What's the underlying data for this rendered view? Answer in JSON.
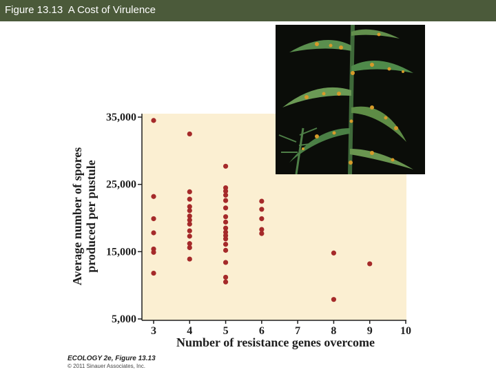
{
  "header": {
    "title": "Figure 13.13  A Cost of Virulence",
    "bar_color": "#4b5a3a"
  },
  "photo": {
    "icon": "leaf-rust-photo"
  },
  "credit": {
    "line1": "ECOLOGY 2e, Figure 13.13",
    "line2": "© 2011 Sinauer Associates, Inc."
  },
  "colors": {
    "plot_bg": "#fbefd2",
    "point": "#a52a2a",
    "axis": "#1e1e1e"
  },
  "chart_data": {
    "type": "scatter",
    "xlabel": "Number of resistance genes overcome",
    "ylabel_lines": [
      "Average number of spores",
      "produced per pustule"
    ],
    "xlim": [
      3,
      10
    ],
    "ylim": [
      5000,
      35000
    ],
    "xticks": [
      "3",
      "4",
      "5",
      "6",
      "7",
      "8",
      "9",
      "10"
    ],
    "yticks": [
      "5,000",
      "15,000",
      "25,000",
      "35,000"
    ],
    "ytick_values": [
      5000,
      15000,
      25000,
      35000
    ],
    "grid": false,
    "points": [
      [
        3,
        34500
      ],
      [
        3,
        23200
      ],
      [
        3,
        19900
      ],
      [
        3,
        17800
      ],
      [
        3,
        15400
      ],
      [
        3,
        14900
      ],
      [
        3,
        11800
      ],
      [
        4,
        32500
      ],
      [
        4,
        23900
      ],
      [
        4,
        22800
      ],
      [
        4,
        21700
      ],
      [
        4,
        21100
      ],
      [
        4,
        20300
      ],
      [
        4,
        19700
      ],
      [
        4,
        19100
      ],
      [
        4,
        18100
      ],
      [
        4,
        17300
      ],
      [
        4,
        16200
      ],
      [
        4,
        15600
      ],
      [
        4,
        13900
      ],
      [
        5,
        27700
      ],
      [
        5,
        24500
      ],
      [
        5,
        24000
      ],
      [
        5,
        23400
      ],
      [
        5,
        22600
      ],
      [
        5,
        21500
      ],
      [
        5,
        20200
      ],
      [
        5,
        19400
      ],
      [
        5,
        18500
      ],
      [
        5,
        17900
      ],
      [
        5,
        17400
      ],
      [
        5,
        16900
      ],
      [
        5,
        16100
      ],
      [
        5,
        15200
      ],
      [
        5,
        13400
      ],
      [
        5,
        11200
      ],
      [
        5,
        10500
      ],
      [
        6,
        22500
      ],
      [
        6,
        21300
      ],
      [
        6,
        19900
      ],
      [
        6,
        18300
      ],
      [
        6,
        17700
      ],
      [
        8,
        14800
      ],
      [
        8,
        7900
      ],
      [
        9,
        13200
      ]
    ]
  }
}
